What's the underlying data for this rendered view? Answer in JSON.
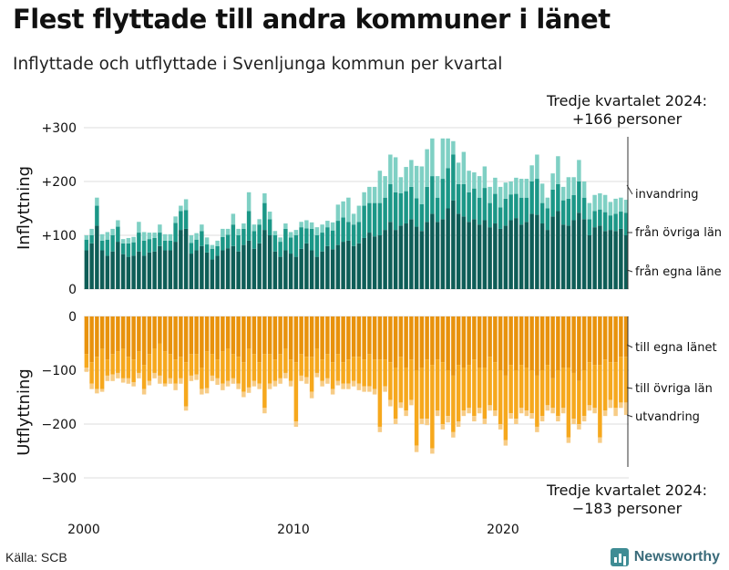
{
  "title": "Flest flyttade till andra kommuner i länet",
  "subtitle": "Inflyttade och utflyttade i Svenljunga kommun per kvartal",
  "source": "Källa: SCB",
  "brand": "Newsworthy",
  "chart_data": [
    {
      "type": "bar",
      "stacked": true,
      "panel": "inflyttning",
      "ylabel": "Inflyttning",
      "ylim": [
        0,
        300
      ],
      "yticks": [
        "0",
        "+100",
        "+200",
        "+300"
      ],
      "xticks": [
        "2000",
        "2010",
        "2020"
      ],
      "grid": true,
      "annotation": {
        "line1": "Tredje kvartalet 2024:",
        "line2": "+166 personer"
      },
      "colors": {
        "egna": "#0e5d57",
        "ovriga": "#1b9787",
        "invandring": "#7fd0c4"
      },
      "series_labels": [
        "från egna läne",
        "från övriga län",
        "invandring"
      ],
      "x_start": "2000 Q1",
      "series": [
        {
          "key": "egna",
          "name": "från egna läne",
          "values": [
            72,
            85,
            118,
            72,
            62,
            70,
            88,
            65,
            60,
            62,
            70,
            62,
            68,
            70,
            80,
            72,
            72,
            88,
            110,
            112,
            66,
            72,
            80,
            68,
            55,
            62,
            72,
            76,
            80,
            70,
            82,
            90,
            75,
            85,
            110,
            100,
            70,
            60,
            72,
            66,
            60,
            75,
            85,
            72,
            60,
            70,
            80,
            74,
            82,
            88,
            90,
            80,
            85,
            95,
            105,
            98,
            100,
            110,
            125,
            110,
            118,
            122,
            130,
            116,
            108,
            125,
            140,
            125,
            130,
            150,
            165,
            140,
            135,
            125,
            130,
            120,
            128,
            115,
            122,
            112,
            118,
            128,
            132,
            120,
            125,
            140,
            138,
            122,
            110,
            135,
            145,
            120,
            118,
            128,
            142,
            130,
            100,
            115,
            118,
            108,
            110,
            108,
            112,
            100
          ]
        },
        {
          "key": "ovriga",
          "name": "från övriga län",
          "values": [
            20,
            15,
            37,
            18,
            30,
            30,
            28,
            20,
            25,
            25,
            35,
            28,
            25,
            25,
            25,
            18,
            18,
            35,
            35,
            35,
            20,
            20,
            28,
            15,
            20,
            18,
            25,
            25,
            40,
            30,
            30,
            55,
            33,
            35,
            50,
            30,
            30,
            28,
            40,
            30,
            40,
            40,
            28,
            40,
            40,
            35,
            35,
            35,
            45,
            45,
            35,
            40,
            40,
            60,
            55,
            62,
            60,
            60,
            70,
            70,
            60,
            60,
            60,
            53,
            50,
            65,
            70,
            45,
            75,
            75,
            85,
            55,
            60,
            55,
            57,
            50,
            60,
            45,
            55,
            40,
            50,
            48,
            45,
            50,
            45,
            60,
            67,
            38,
            40,
            50,
            50,
            45,
            50,
            47,
            58,
            40,
            30,
            30,
            30,
            35,
            27,
            32,
            32,
            42
          ]
        },
        {
          "key": "invandring",
          "name": "invandring",
          "values": [
            8,
            12,
            15,
            12,
            14,
            12,
            12,
            8,
            10,
            10,
            20,
            16,
            12,
            10,
            15,
            12,
            12,
            12,
            10,
            20,
            14,
            12,
            12,
            13,
            7,
            10,
            15,
            11,
            20,
            12,
            10,
            35,
            12,
            10,
            18,
            14,
            8,
            8,
            10,
            10,
            10,
            10,
            15,
            12,
            15,
            15,
            12,
            15,
            30,
            30,
            45,
            20,
            30,
            25,
            30,
            30,
            60,
            40,
            55,
            65,
            30,
            45,
            50,
            60,
            70,
            70,
            70,
            40,
            75,
            55,
            25,
            40,
            60,
            40,
            30,
            40,
            40,
            30,
            30,
            38,
            30,
            24,
            30,
            35,
            35,
            30,
            45,
            36,
            20,
            30,
            52,
            25,
            40,
            33,
            40,
            30,
            30,
            30,
            30,
            32,
            25,
            28,
            26,
            24
          ]
        }
      ]
    },
    {
      "type": "bar",
      "stacked": true,
      "panel": "utflyttning",
      "ylabel": "Utflyttning",
      "ylim": [
        -300,
        0
      ],
      "yticks": [
        "0",
        "−100",
        "−200",
        "−300"
      ],
      "xticks": [
        "2000",
        "2010",
        "2020"
      ],
      "grid": true,
      "annotation": {
        "line1": "Tredje kvartalet 2024:",
        "line2": "−183 personer"
      },
      "colors": {
        "egna": "#e8920c",
        "ovriga": "#f6a81d",
        "utvandring": "#f7cc86"
      },
      "series_labels": [
        "till egna länet",
        "till övriga län",
        "utvandring"
      ],
      "x_start": "2000 Q1",
      "series": [
        {
          "key": "egna",
          "name": "till egna länet",
          "values": [
            -70,
            -85,
            -75,
            -60,
            -80,
            -70,
            -65,
            -60,
            -75,
            -80,
            -65,
            -90,
            -70,
            -60,
            -50,
            -65,
            -70,
            -80,
            -75,
            -85,
            -70,
            -70,
            -95,
            -65,
            -70,
            -80,
            -65,
            -60,
            -70,
            -75,
            -85,
            -60,
            -70,
            -85,
            -70,
            -70,
            -80,
            -70,
            -60,
            -80,
            -85,
            -70,
            -75,
            -75,
            -60,
            -80,
            -70,
            -85,
            -70,
            -85,
            -80,
            -75,
            -75,
            -80,
            -70,
            -80,
            -80,
            -80,
            -85,
            -95,
            -75,
            -95,
            -80,
            -100,
            -95,
            -80,
            -90,
            -80,
            -85,
            -100,
            -110,
            -90,
            -95,
            -90,
            -80,
            -95,
            -95,
            -75,
            -85,
            -100,
            -110,
            -90,
            -100,
            -90,
            -95,
            -100,
            -110,
            -100,
            -90,
            -115,
            -100,
            -95,
            -95,
            -105,
            -120,
            -100,
            -85,
            -90,
            -90,
            -80,
            -85,
            -85,
            -75,
            -75
          ]
        },
        {
          "key": "ovriga",
          "name": "till övriga län",
          "values": [
            -25,
            -40,
            -60,
            -75,
            -30,
            -38,
            -40,
            -55,
            -40,
            -42,
            -40,
            -45,
            -50,
            -45,
            -60,
            -60,
            -45,
            -45,
            -40,
            -82,
            -40,
            -38,
            -40,
            -68,
            -40,
            -35,
            -60,
            -60,
            -45,
            -50,
            -55,
            -72,
            -50,
            -40,
            -100,
            -55,
            -40,
            -45,
            -45,
            -40,
            -110,
            -40,
            -38,
            -65,
            -45,
            -40,
            -45,
            -50,
            -50,
            -40,
            -45,
            -45,
            -50,
            -50,
            -60,
            -55,
            -125,
            -50,
            -70,
            -95,
            -85,
            -80,
            -75,
            -140,
            -95,
            -110,
            -155,
            -95,
            -115,
            -85,
            -105,
            -105,
            -80,
            -80,
            -105,
            -75,
            -95,
            -90,
            -90,
            -100,
            -120,
            -90,
            -90,
            -80,
            -80,
            -80,
            -95,
            -85,
            -75,
            -55,
            -85,
            -75,
            -130,
            -85,
            -80,
            -85,
            -80,
            -80,
            -135,
            -95,
            -70,
            -85,
            -85,
            -85
          ]
        },
        {
          "key": "utvandring",
          "name": "utvandring",
          "values": [
            -8,
            -10,
            -8,
            -5,
            -10,
            -12,
            -10,
            -8,
            -10,
            -8,
            -10,
            -10,
            -8,
            -10,
            -15,
            -5,
            -10,
            -12,
            -10,
            -8,
            -10,
            -10,
            -10,
            -10,
            -10,
            -12,
            -12,
            -10,
            -10,
            -10,
            -10,
            -10,
            -10,
            -10,
            -10,
            -10,
            -10,
            -10,
            -10,
            -10,
            -10,
            -10,
            -12,
            -12,
            -8,
            -10,
            -10,
            -10,
            -8,
            -10,
            -10,
            -10,
            -12,
            -10,
            -10,
            -10,
            -10,
            -10,
            -12,
            -10,
            -10,
            -10,
            -10,
            -12,
            -10,
            -12,
            -10,
            -10,
            -10,
            -12,
            -10,
            -10,
            -10,
            -10,
            -10,
            -10,
            -10,
            -10,
            -10,
            -10,
            -10,
            -10,
            -10,
            -10,
            -10,
            -10,
            -10,
            -10,
            -10,
            -10,
            -10,
            -10,
            -10,
            -10,
            -10,
            -10,
            -10,
            -10,
            -10,
            -10,
            -15,
            -15,
            -10,
            -23
          ]
        }
      ]
    }
  ]
}
